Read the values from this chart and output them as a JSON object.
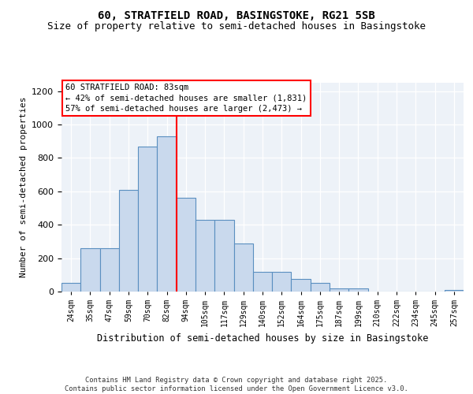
{
  "title": "60, STRATFIELD ROAD, BASINGSTOKE, RG21 5SB",
  "subtitle": "Size of property relative to semi-detached houses in Basingstoke",
  "xlabel": "Distribution of semi-detached houses by size in Basingstoke",
  "ylabel": "Number of semi-detached properties",
  "categories": [
    "24sqm",
    "35sqm",
    "47sqm",
    "59sqm",
    "70sqm",
    "82sqm",
    "94sqm",
    "105sqm",
    "117sqm",
    "129sqm",
    "140sqm",
    "152sqm",
    "164sqm",
    "175sqm",
    "187sqm",
    "199sqm",
    "210sqm",
    "222sqm",
    "234sqm",
    "245sqm",
    "257sqm"
  ],
  "values": [
    50,
    260,
    260,
    610,
    870,
    930,
    560,
    430,
    430,
    290,
    120,
    120,
    75,
    50,
    20,
    20,
    0,
    0,
    0,
    0,
    10
  ],
  "bar_color": "#c9d9ed",
  "bar_edge_color": "#5a8fc0",
  "vline_color": "red",
  "vline_pos": 5.5,
  "annotation_text": "60 STRATFIELD ROAD: 83sqm\n← 42% of semi-detached houses are smaller (1,831)\n57% of semi-detached houses are larger (2,473) →",
  "ylim": [
    0,
    1250
  ],
  "yticks": [
    0,
    200,
    400,
    600,
    800,
    1000,
    1200
  ],
  "footer_text": "Contains HM Land Registry data © Crown copyright and database right 2025.\nContains public sector information licensed under the Open Government Licence v3.0.",
  "bg_color": "#edf2f8",
  "fig_bg": "#ffffff",
  "title_fontsize": 10,
  "subtitle_fontsize": 9
}
